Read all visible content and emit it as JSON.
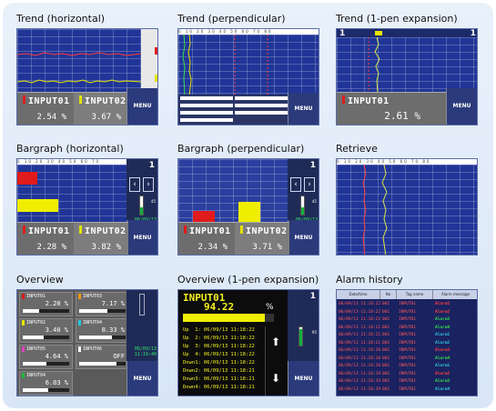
{
  "titles": {
    "trend_h": "Trend (horizontal)",
    "trend_p": "Trend (perpendicular)",
    "trend_1": "Trend (1-pen expansion)",
    "bar_h": "Bargraph (horizontal)",
    "bar_p": "Bargraph (perpendicular)",
    "retrieve": "Retrieve",
    "overview": "Overview",
    "overview_1": "Overview (1-pen expansion)",
    "alarm": "Alarm history"
  },
  "common": {
    "menu_label": "MENU",
    "date": "06/09/13",
    "time": "11:19:40",
    "pen_number": "1"
  },
  "trend_h": {
    "input1": {
      "tag": "INPUT01",
      "value": "2.54 %"
    },
    "input2": {
      "tag": "INPUT02",
      "value": "3.67 %"
    }
  },
  "trend_1": {
    "input1": {
      "tag": "INPUT01",
      "value": "2.61 %"
    }
  },
  "bar_h": {
    "input1": {
      "tag": "INPUT01",
      "value": "2.28 %"
    },
    "input2": {
      "tag": "INPUT02",
      "value": "3.82 %"
    },
    "meter_value": "45"
  },
  "bar_p": {
    "input1": {
      "tag": "INPUT01",
      "value": "2.34 %"
    },
    "input2": {
      "tag": "INPUT02",
      "value": "3.71 %"
    },
    "meter_value": "45"
  },
  "overview": {
    "items": [
      {
        "tag": "INPUT01",
        "value": "2.20 %",
        "color": "#e01b1b",
        "fill": 0.35
      },
      {
        "tag": "INPUT03",
        "value": "7.17 %",
        "color": "#f39a12",
        "fill": 0.6
      },
      {
        "tag": "INPUT02",
        "value": "3.40 %",
        "color": "#e5e500",
        "fill": 0.45
      },
      {
        "tag": "INPUT04",
        "value": "8.33 %",
        "color": "#29c7e0",
        "fill": 0.7
      },
      {
        "tag": "INPUT05",
        "value": "4.64 %",
        "color": "#e040c0",
        "fill": 0.5
      },
      {
        "tag": "INPUT06",
        "value": "OFF",
        "color": "#ffffff",
        "fill": 0.8
      },
      {
        "tag": "INPUT04",
        "value": "6.03 %",
        "color": "#1eb83a",
        "fill": 0.55
      }
    ]
  },
  "overview_1": {
    "tag": "INPUT01",
    "value": "94.22",
    "unit": "%",
    "meter_value": "95",
    "fill": 0.9,
    "events": [
      {
        "label": "Up  1:",
        "date": "06/09/13",
        "time": "11:18:22"
      },
      {
        "label": "Up  2:",
        "date": "06/09/13",
        "time": "11:18:22"
      },
      {
        "label": "Up  3:",
        "date": "06/09/13",
        "time": "11:18:22"
      },
      {
        "label": "Up  4:",
        "date": "06/09/13",
        "time": "11:18:22"
      },
      {
        "label": "Down1:",
        "date": "06/09/13",
        "time": "11:18:22"
      },
      {
        "label": "Down2:",
        "date": "06/09/13",
        "time": "11:18:21"
      },
      {
        "label": "Down3:",
        "date": "06/09/13",
        "time": "11:18:21"
      },
      {
        "label": "Down4:",
        "date": "06/09/13",
        "time": "11:18:21"
      }
    ]
  },
  "alarm": {
    "headers": [
      "Date/time",
      "No",
      "Tag name",
      "Alarm message"
    ],
    "rows": [
      {
        "time": "06/09/13 11:18:22",
        "no": "001",
        "tag": "INPUT01",
        "msg": "Alarm1",
        "color": "#ff3b3b"
      },
      {
        "time": "06/09/13 11:18:22",
        "no": "001",
        "tag": "INPUT01",
        "msg": "Alarm2",
        "color": "#ff3b3b"
      },
      {
        "time": "06/09/13 11:18:22",
        "no": "001",
        "tag": "INPUT01",
        "msg": "Alarm3",
        "color": "#33e04a"
      },
      {
        "time": "06/09/13 11:18:21",
        "no": "001",
        "tag": "INPUT01",
        "msg": "Alarm4",
        "color": "#33e04a"
      },
      {
        "time": "06/09/13 11:18:21",
        "no": "001",
        "tag": "INPUT01",
        "msg": "Alarm1",
        "color": "#29c7e0"
      },
      {
        "time": "06/09/13 11:18:21",
        "no": "001",
        "tag": "INPUT01",
        "msg": "Alarm2",
        "color": "#29c7e0"
      },
      {
        "time": "06/09/13 11:18:20",
        "no": "001",
        "tag": "INPUT01",
        "msg": "Alarm3",
        "color": "#ff3b3b"
      },
      {
        "time": "06/09/13 11:18:20",
        "no": "001",
        "tag": "INPUT01",
        "msg": "Alarm4",
        "color": "#33e04a"
      },
      {
        "time": "06/09/13 11:18:20",
        "no": "001",
        "tag": "INPUT01",
        "msg": "Alarm1",
        "color": "#29c7e0"
      },
      {
        "time": "06/09/13 11:18:19",
        "no": "001",
        "tag": "INPUT01",
        "msg": "Alarm2",
        "color": "#ff3b3b"
      },
      {
        "time": "06/09/13 11:18:19",
        "no": "001",
        "tag": "INPUT01",
        "msg": "Alarm3",
        "color": "#33e04a"
      },
      {
        "time": "06/09/13 11:18:19",
        "no": "001",
        "tag": "INPUT01",
        "msg": "Alarm4",
        "color": "#29c7e0"
      }
    ]
  }
}
